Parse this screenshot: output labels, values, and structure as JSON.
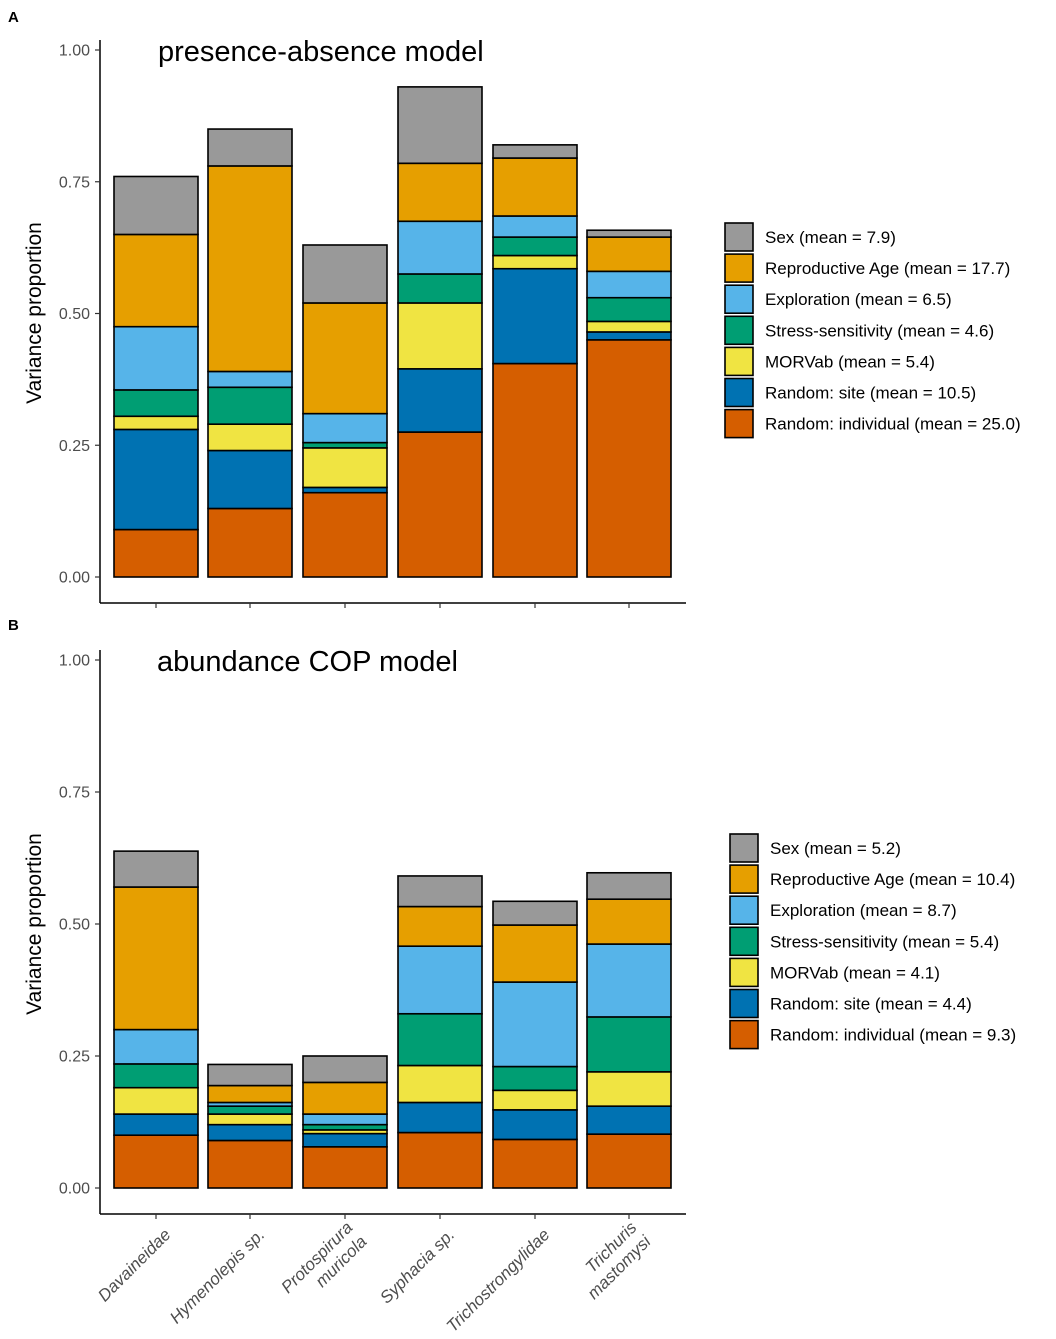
{
  "chart_data": [
    {
      "type": "bar",
      "stacked": true,
      "panel_label": "A",
      "title": "presence-absence model",
      "xlabel": "",
      "ylabel": "Variance proportion",
      "ylim": [
        0,
        1
      ],
      "yticks": [
        "0.00",
        "0.25",
        "0.50",
        "0.75",
        "1.00"
      ],
      "categories": [
        "Davaineidae",
        "Hymenolepis sp.",
        "Protospirura muricola",
        "Syphacia sp.",
        "Trichostrongylidae",
        "Trichuris mastomysi"
      ],
      "legend_position": "right",
      "series": [
        {
          "name": "Random: individual",
          "legend": "Random: individual (mean = 25.0)",
          "color": "#D55E00",
          "values": [
            0.09,
            0.13,
            0.16,
            0.275,
            0.405,
            0.45
          ]
        },
        {
          "name": "Random: site",
          "legend": "Random: site (mean = 10.5)",
          "color": "#0072B2",
          "values": [
            0.19,
            0.11,
            0.01,
            0.12,
            0.18,
            0.015
          ]
        },
        {
          "name": "MORVab",
          "legend": "MORVab (mean = 5.4)",
          "color": "#F0E442",
          "values": [
            0.025,
            0.05,
            0.075,
            0.125,
            0.025,
            0.02
          ]
        },
        {
          "name": "Stress-sensitivity",
          "legend": "Stress-sensitivity (mean = 4.6)",
          "color": "#009E73",
          "values": [
            0.05,
            0.07,
            0.01,
            0.055,
            0.035,
            0.045
          ]
        },
        {
          "name": "Exploration",
          "legend": "Exploration (mean = 6.5)",
          "color": "#56B4E9",
          "values": [
            0.12,
            0.03,
            0.055,
            0.1,
            0.04,
            0.05
          ]
        },
        {
          "name": "Reproductive Age",
          "legend": "Reproductive Age (mean = 17.7)",
          "color": "#E69F00",
          "values": [
            0.175,
            0.39,
            0.21,
            0.11,
            0.11,
            0.065
          ]
        },
        {
          "name": "Sex",
          "legend": "Sex (mean = 7.9)",
          "color": "#999999",
          "values": [
            0.11,
            0.07,
            0.11,
            0.145,
            0.025,
            0.013
          ]
        }
      ]
    },
    {
      "type": "bar",
      "stacked": true,
      "panel_label": "B",
      "title": "abundance COP model",
      "xlabel": "",
      "ylabel": "Variance proportion",
      "ylim": [
        0,
        1
      ],
      "yticks": [
        "0.00",
        "0.25",
        "0.50",
        "0.75",
        "1.00"
      ],
      "categories": [
        "Davaineidae",
        "Hymenolepis sp.",
        "Protospirura muricola",
        "Syphacia sp.",
        "Trichostrongylidae",
        "Trichuris mastomysi"
      ],
      "legend_position": "right",
      "series": [
        {
          "name": "Random: individual",
          "legend": "Random: individual (mean = 9.3)",
          "color": "#D55E00",
          "values": [
            0.1,
            0.09,
            0.078,
            0.105,
            0.092,
            0.102
          ]
        },
        {
          "name": "Random: site",
          "legend": "Random: site (mean = 4.4)",
          "color": "#0072B2",
          "values": [
            0.04,
            0.03,
            0.025,
            0.057,
            0.056,
            0.053
          ]
        },
        {
          "name": "MORVab",
          "legend": "MORVab (mean = 4.1)",
          "color": "#F0E442",
          "values": [
            0.05,
            0.02,
            0.007,
            0.07,
            0.037,
            0.065
          ]
        },
        {
          "name": "Stress-sensitivity",
          "legend": "Stress-sensitivity (mean = 5.4)",
          "color": "#009E73",
          "values": [
            0.045,
            0.015,
            0.01,
            0.098,
            0.045,
            0.104
          ]
        },
        {
          "name": "Exploration",
          "legend": "Exploration (mean = 8.7)",
          "color": "#56B4E9",
          "values": [
            0.065,
            0.007,
            0.02,
            0.128,
            0.16,
            0.138
          ]
        },
        {
          "name": "Reproductive Age",
          "legend": "Reproductive Age (mean = 10.4)",
          "color": "#E69F00",
          "values": [
            0.27,
            0.032,
            0.06,
            0.075,
            0.108,
            0.085
          ]
        },
        {
          "name": "Sex",
          "legend": "Sex (mean = 5.2)",
          "color": "#999999",
          "values": [
            0.068,
            0.04,
            0.05,
            0.058,
            0.045,
            0.05
          ]
        }
      ]
    }
  ]
}
